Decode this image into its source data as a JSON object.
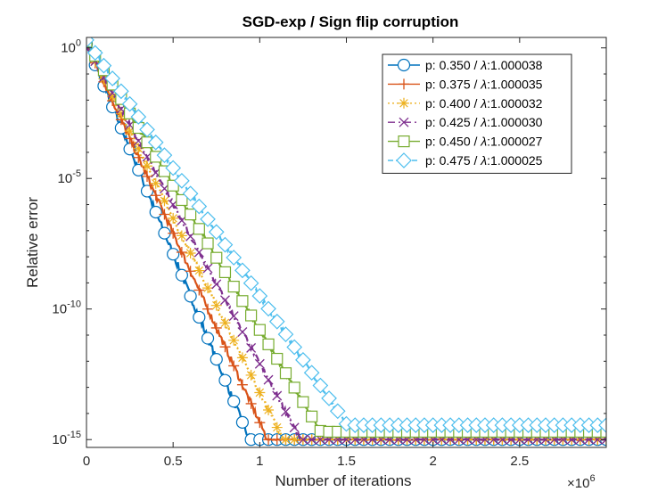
{
  "chart_data": {
    "type": "line",
    "title": "SGD-exp / Sign flip corruption",
    "xlabel": "Number of iterations",
    "ylabel": "Relative error",
    "x_multiplier_label": "×10",
    "x_multiplier_exp": "6",
    "xlim": [
      0,
      3.0
    ],
    "ylim_log10": [
      -15.3,
      0.4
    ],
    "x_ticks": [
      {
        "value": 0,
        "label": "0"
      },
      {
        "value": 0.5,
        "label": "0.5"
      },
      {
        "value": 1.0,
        "label": "1"
      },
      {
        "value": 1.5,
        "label": "1.5"
      },
      {
        "value": 2.0,
        "label": "2"
      },
      {
        "value": 2.5,
        "label": "2.5"
      }
    ],
    "y_ticks": [
      {
        "log10": 0,
        "base": "10",
        "exp": "0"
      },
      {
        "log10": -5,
        "base": "10",
        "exp": "-5"
      },
      {
        "log10": -10,
        "base": "10",
        "exp": "-10"
      },
      {
        "log10": -15,
        "base": "10",
        "exp": "-15"
      }
    ],
    "series": [
      {
        "name": "p: 0.350 / λ:1.000038",
        "legend_prefix": "p: 0.350 / ",
        "legend_lambda": "λ",
        "legend_suffix": ":1.000038",
        "color": "#0072BD",
        "marker": "circle",
        "dash": "",
        "start_x": 0.0,
        "start_log10": 0.15,
        "slope": -16.1,
        "floor_log10": -15.0,
        "noise_width": 0.14
      },
      {
        "name": "p: 0.375 / λ:1.000035",
        "legend_prefix": "p: 0.375 / ",
        "legend_lambda": "λ",
        "legend_suffix": ":1.000035",
        "color": "#D95319",
        "marker": "plus",
        "dash": "",
        "start_x": 0.0,
        "start_log10": 0.15,
        "slope": -14.5,
        "floor_log10": -15.0,
        "noise_width": 0.12
      },
      {
        "name": "p: 0.400 / λ:1.000032",
        "legend_prefix": "p: 0.400 / ",
        "legend_lambda": "λ",
        "legend_suffix": ":1.000032",
        "color": "#EDB120",
        "marker": "asterisk",
        "dash": "2,3",
        "start_x": 0.0,
        "start_log10": 0.15,
        "slope": -13.35,
        "floor_log10": -15.0,
        "noise_width": 0.11
      },
      {
        "name": "p: 0.425 / λ:1.000030",
        "legend_prefix": "p: 0.425 / ",
        "legend_lambda": "λ",
        "legend_suffix": ":1.000030",
        "color": "#7E2F8E",
        "marker": "x",
        "dash": "8,4,2,4",
        "start_x": 0.0,
        "start_log10": 0.1,
        "slope": -12.2,
        "floor_log10": -15.0,
        "noise_width": 0.1
      },
      {
        "name": "p: 0.450 / λ:1.000027",
        "legend_prefix": "p: 0.450 / ",
        "legend_lambda": "λ",
        "legend_suffix": ":1.000027",
        "color": "#77AC30",
        "marker": "square",
        "dash": "",
        "start_x": 0.0,
        "start_log10": 0.25,
        "slope": -11.05,
        "floor_log10": -14.7,
        "noise_width": 0.09
      },
      {
        "name": "p: 0.475 / λ:1.000025",
        "legend_prefix": "p: 0.475 / ",
        "legend_lambda": "λ",
        "legend_suffix": ":1.000025",
        "color": "#4DBEEE",
        "marker": "diamond",
        "dash": "6,3",
        "start_x": 0.0,
        "start_log10": 0.3,
        "slope": -9.8,
        "floor_log10": -14.45,
        "noise_width": 0.08
      }
    ],
    "legend_position": "top-right"
  }
}
